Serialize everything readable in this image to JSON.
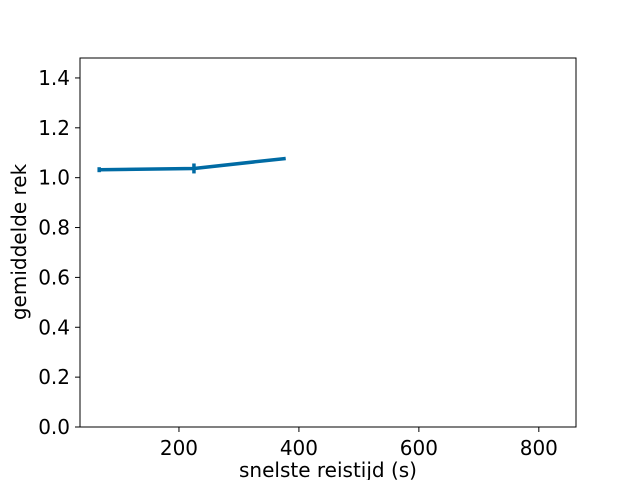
{
  "chart_data": {
    "type": "line",
    "title": "",
    "xlabel": "snelste reistijd (s)",
    "ylabel": "gemiddelde rek",
    "xlim": [
      35,
      862
    ],
    "ylim": [
      0.0,
      1.48
    ],
    "xticks": [
      200,
      400,
      600,
      800
    ],
    "xtick_labels": [
      "200",
      "400",
      "600",
      "800"
    ],
    "yticks": [
      0.0,
      0.2,
      0.4,
      0.6,
      0.8,
      1.0,
      1.2,
      1.4
    ],
    "ytick_labels": [
      "0.0",
      "0.2",
      "0.4",
      "0.6",
      "0.8",
      "1.0",
      "1.2",
      "1.4"
    ],
    "grid": false,
    "legend": "none",
    "series": [
      {
        "color": "#006ba4",
        "x": [
          67,
          225,
          378
        ],
        "y": [
          1.032,
          1.037,
          1.077
        ],
        "yerr": [
          0.01,
          0.02,
          0.0
        ]
      }
    ]
  }
}
